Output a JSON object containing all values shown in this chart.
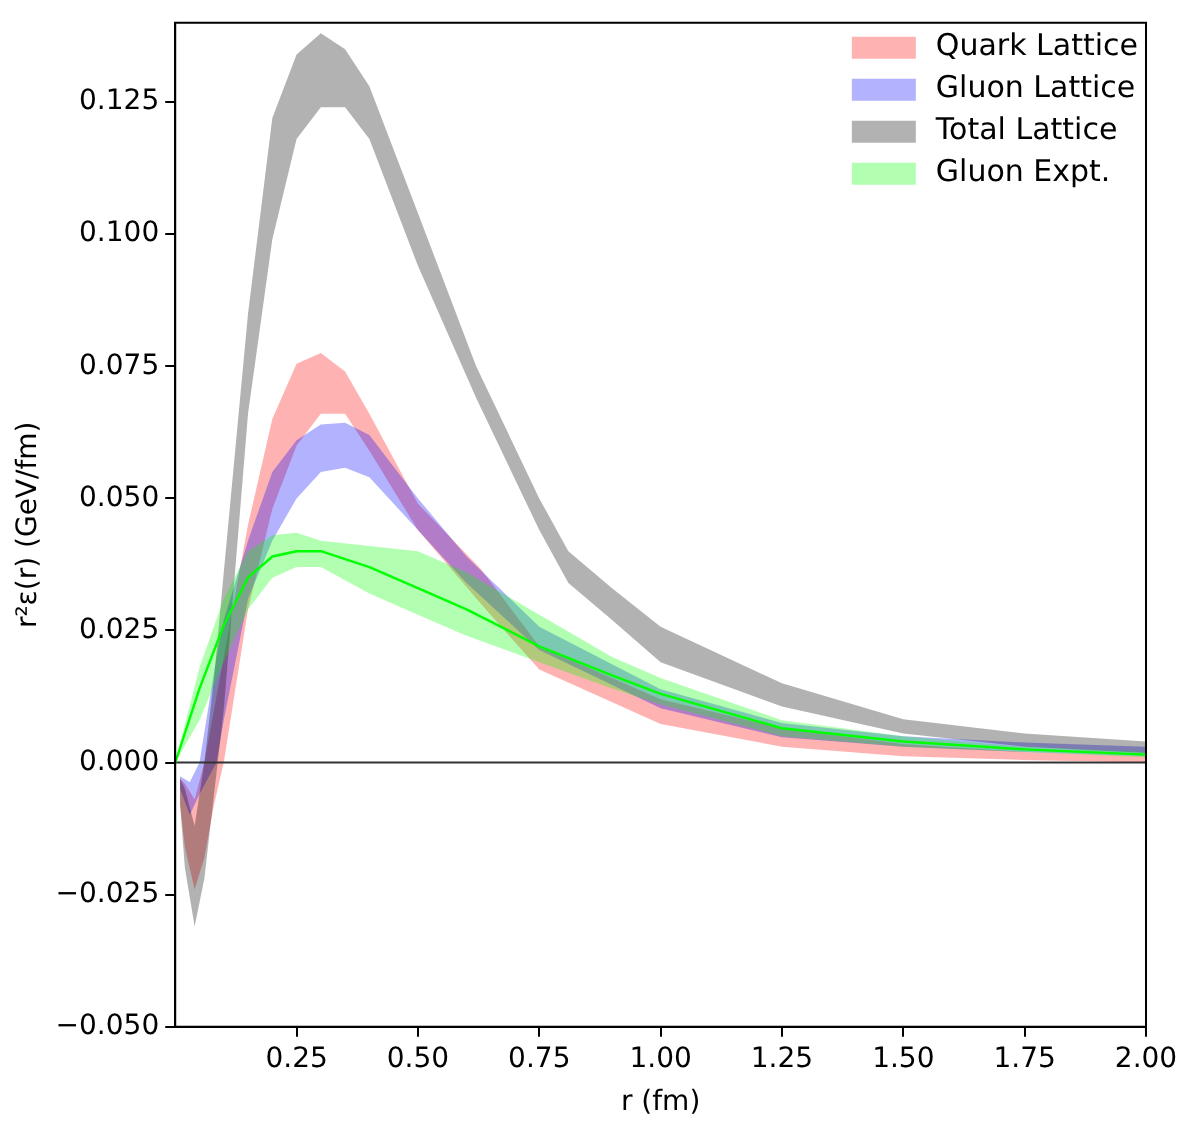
{
  "chart_data": {
    "type": "line",
    "xlabel": "r (fm)",
    "ylabel": "r²ε(r) (GeV/fm)",
    "xlim": [
      0,
      2.0
    ],
    "ylim": [
      -0.05,
      0.14
    ],
    "xticks": [
      {
        "value": 0.25,
        "label": "0.25"
      },
      {
        "value": 0.5,
        "label": "0.50"
      },
      {
        "value": 0.75,
        "label": "0.75"
      },
      {
        "value": 1.0,
        "label": "1.00"
      },
      {
        "value": 1.25,
        "label": "1.25"
      },
      {
        "value": 1.5,
        "label": "1.50"
      },
      {
        "value": 1.75,
        "label": "1.75"
      },
      {
        "value": 2.0,
        "label": "2.00"
      }
    ],
    "yticks": [
      {
        "value": -0.05,
        "label": "−0.050"
      },
      {
        "value": -0.025,
        "label": "−0.025"
      },
      {
        "value": 0,
        "label": "0.000"
      },
      {
        "value": 0.025,
        "label": "0.025"
      },
      {
        "value": 0.05,
        "label": "0.050"
      },
      {
        "value": 0.075,
        "label": "0.075"
      },
      {
        "value": 0.1,
        "label": "0.100"
      },
      {
        "value": 0.125,
        "label": "0.125"
      }
    ],
    "grid": false,
    "legend": "top right",
    "ref_lines": [
      {
        "axis": "y",
        "value": 0,
        "color": "#333333"
      }
    ],
    "series": [
      {
        "name": "Quark Lattice",
        "color": "#ff0000",
        "x": [
          0.01,
          0.02,
          0.04,
          0.06,
          0.08,
          0.1,
          0.15,
          0.2,
          0.25,
          0.3,
          0.35,
          0.4,
          0.5,
          0.63,
          0.75,
          1.0,
          1.25,
          1.5,
          1.75,
          2.0
        ],
        "values": [
          null,
          null,
          null,
          null,
          null,
          null,
          null,
          null,
          null,
          null,
          null,
          null,
          null,
          null,
          null,
          null,
          null,
          null,
          null,
          null
        ],
        "lower": [
          -0.008,
          -0.016,
          -0.024,
          -0.018,
          -0.008,
          0.0,
          0.029,
          0.048,
          0.06,
          0.066,
          0.066,
          0.059,
          0.044,
          0.03,
          0.0176,
          0.0073,
          0.003,
          0.0012,
          0.0005,
          0.0
        ],
        "upper": [
          -0.003,
          -0.004,
          -0.007,
          0.0,
          0.01,
          0.02,
          0.045,
          0.065,
          0.0755,
          0.0775,
          0.074,
          0.066,
          0.049,
          0.0366,
          0.022,
          0.012,
          0.0065,
          0.0035,
          0.002,
          0.0012
        ]
      },
      {
        "name": "Gluon Lattice",
        "color": "#0000ff",
        "x": [
          0.01,
          0.03,
          0.05,
          0.085,
          0.1,
          0.15,
          0.2,
          0.25,
          0.3,
          0.35,
          0.4,
          0.5,
          0.6,
          0.75,
          1.0,
          1.25,
          1.5,
          1.75,
          2.0
        ],
        "values": [
          null,
          null,
          null,
          null,
          null,
          null,
          null,
          null,
          null,
          null,
          null,
          null,
          null,
          null,
          null,
          null,
          null,
          null,
          null
        ],
        "lower": [
          -0.005,
          -0.0099,
          -0.006,
          0.0,
          0.008,
          0.031,
          0.042,
          0.05,
          0.055,
          0.0558,
          0.054,
          0.044,
          0.034,
          0.0213,
          0.0103,
          0.0048,
          0.003,
          0.002,
          0.0012
        ],
        "upper": [
          -0.0026,
          -0.0037,
          0.0,
          0.02,
          0.027,
          0.042,
          0.055,
          0.061,
          0.064,
          0.0643,
          0.062,
          0.05,
          0.039,
          0.0257,
          0.0139,
          0.0075,
          0.005,
          0.0038,
          0.003
        ]
      },
      {
        "name": "Total Lattice",
        "color": "#000000",
        "x": [
          0.01,
          0.02,
          0.04,
          0.06,
          0.08,
          0.1,
          0.15,
          0.2,
          0.25,
          0.3,
          0.35,
          0.4,
          0.5,
          0.62,
          0.75,
          0.81,
          0.9,
          1.0,
          1.25,
          1.5,
          1.75,
          2.0
        ],
        "values": [
          null,
          null,
          null,
          null,
          null,
          null,
          null,
          null,
          null,
          null,
          null,
          null,
          null,
          null,
          null,
          null,
          null,
          null,
          null,
          null,
          null,
          null
        ],
        "lower": [
          -0.008,
          -0.02,
          -0.031,
          -0.022,
          -0.006,
          0.01,
          0.066,
          0.099,
          0.118,
          0.124,
          0.124,
          0.118,
          0.094,
          0.069,
          0.044,
          0.034,
          0.027,
          0.019,
          0.0106,
          0.0055,
          0.003,
          0.0018
        ],
        "upper": [
          -0.003,
          -0.005,
          -0.012,
          0.0,
          0.016,
          0.036,
          0.085,
          0.122,
          0.134,
          0.138,
          0.135,
          0.128,
          0.104,
          0.075,
          0.05,
          0.04,
          0.033,
          0.0257,
          0.015,
          0.0082,
          0.0055,
          0.004
        ]
      },
      {
        "name": "Gluon Expt.",
        "color": "#00ff00",
        "x": [
          0,
          0.05,
          0.1,
          0.15,
          0.2,
          0.25,
          0.3,
          0.4,
          0.5,
          0.6,
          0.75,
          0.9,
          1.0,
          1.25,
          1.5,
          1.75,
          2.0
        ],
        "values": [
          0,
          0.014,
          0.026,
          0.035,
          0.039,
          0.04,
          0.04,
          0.037,
          0.033,
          0.029,
          0.022,
          0.0165,
          0.013,
          0.0065,
          0.004,
          0.0025,
          0.0015
        ],
        "lower": [
          0,
          0.008,
          0.019,
          0.029,
          0.035,
          0.037,
          0.037,
          0.032,
          0.028,
          0.024,
          0.019,
          0.014,
          0.011,
          0.005,
          0.003,
          0.002,
          0.001
        ],
        "upper": [
          0,
          0.018,
          0.031,
          0.04,
          0.043,
          0.0435,
          0.042,
          0.041,
          0.04,
          0.036,
          0.028,
          0.02,
          0.016,
          0.008,
          0.005,
          0.003,
          0.002
        ]
      }
    ]
  }
}
